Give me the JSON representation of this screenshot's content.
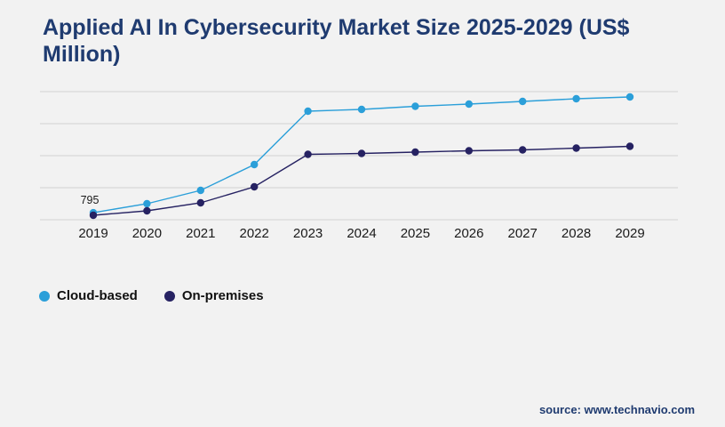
{
  "page": {
    "title": "Applied AI In Cybersecurity Market Size 2025-2029 (US$ Million)",
    "source": "source: www.technavio.com",
    "background": "#f2f2f2"
  },
  "chart_data": {
    "type": "line",
    "title": "Applied AI In Cybersecurity Market Size 2025-2029 (US$ Million)",
    "x": [
      "2019",
      "2020",
      "2021",
      "2022",
      "2023",
      "2024",
      "2025",
      "2026",
      "2027",
      "2028",
      "2029"
    ],
    "series": [
      {
        "name": "Cloud-based",
        "color": "#2b9fd9",
        "values": [
          795,
          1800,
          3300,
          6200,
          12200,
          12400,
          12750,
          13000,
          13300,
          13600,
          13800
        ]
      },
      {
        "name": "On-premises",
        "color": "#262262",
        "values": [
          500,
          1000,
          1900,
          3700,
          7350,
          7450,
          7600,
          7750,
          7850,
          8050,
          8250
        ]
      }
    ],
    "ylim": [
      0,
      14400
    ],
    "grid": "horizontal",
    "gridline_count": 5,
    "legend_position": "bottom-left",
    "annotations": [
      {
        "series": "Cloud-based",
        "x": "2019",
        "text": "795"
      }
    ]
  }
}
